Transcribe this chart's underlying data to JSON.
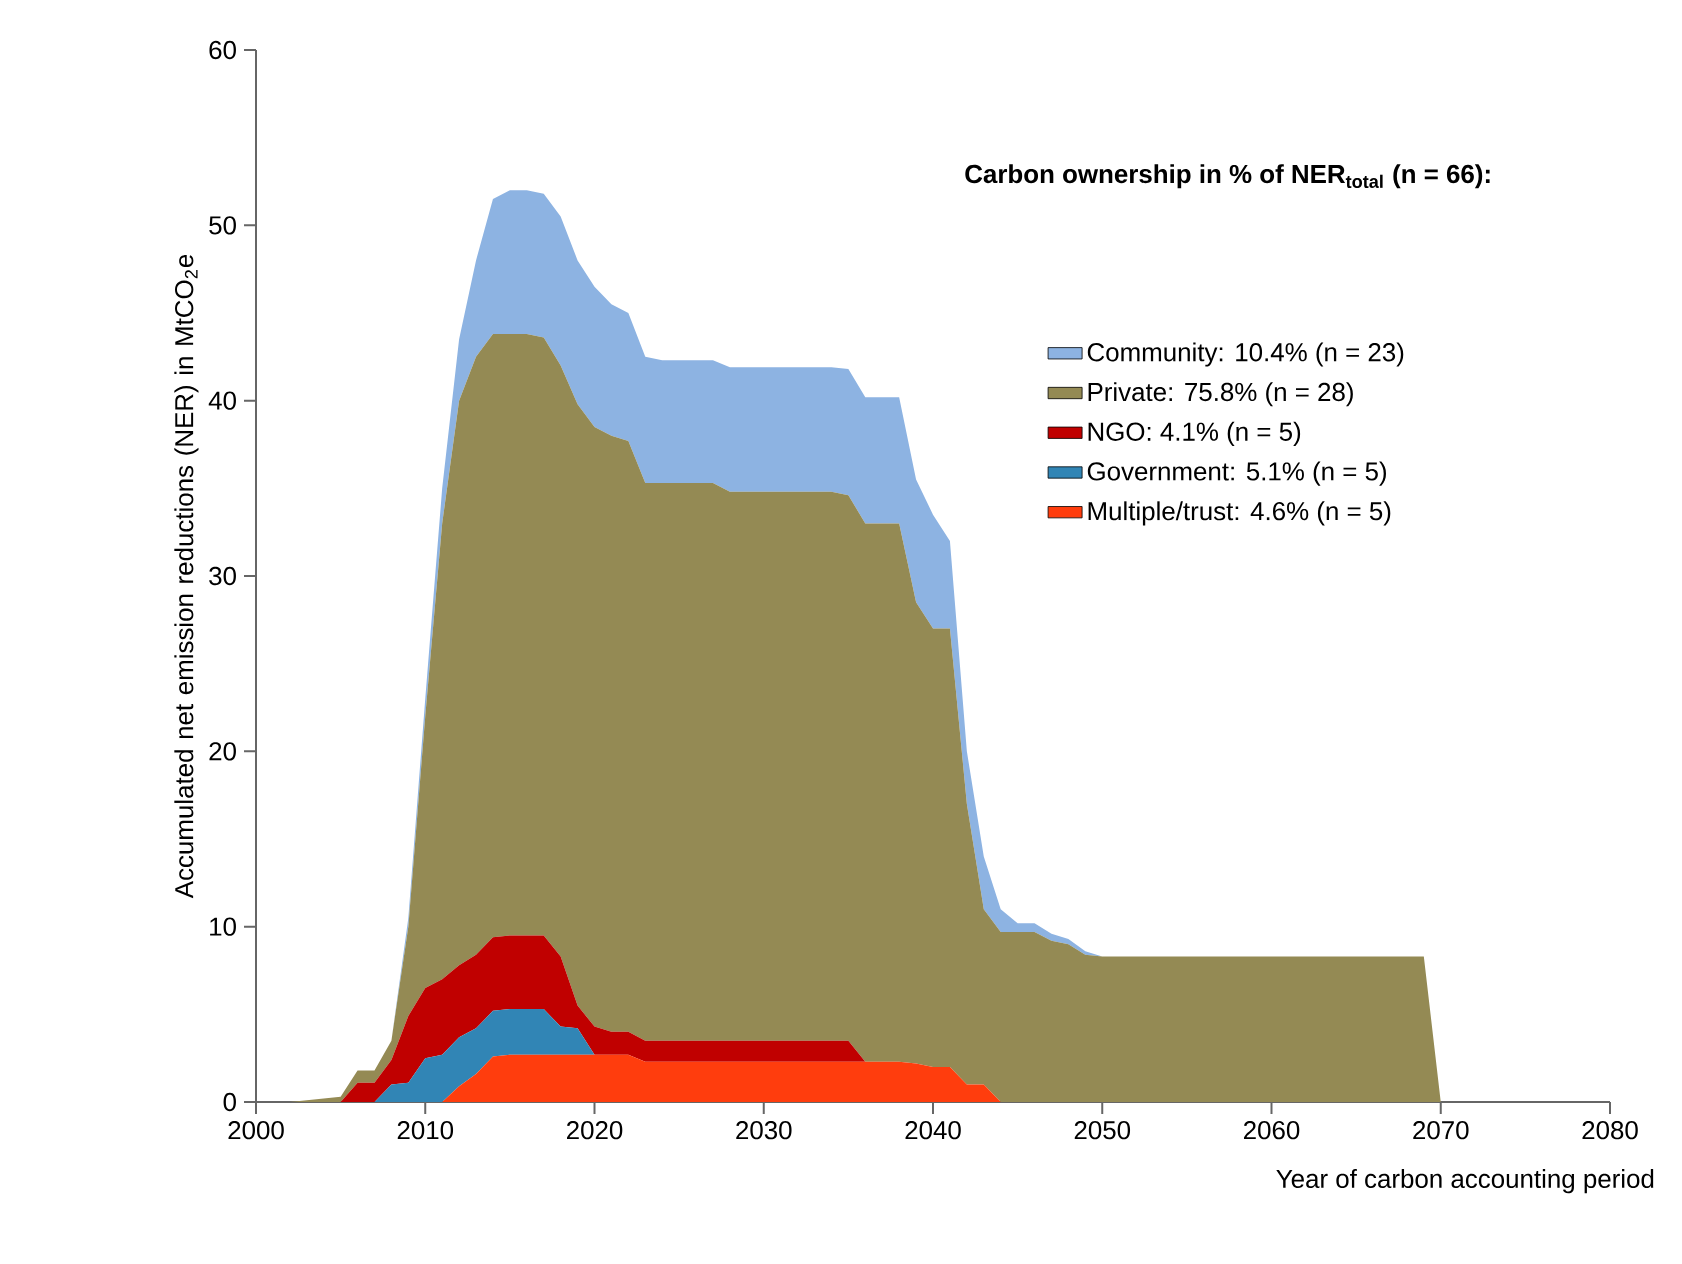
{
  "chart_data": {
    "type": "area",
    "stacked": true,
    "xlabel": "Year of carbon accounting period",
    "ylabel": "Accumulated net emission reductions (NER) in MtCO$_{2}$e",
    "legend_title": "**Carbon ownership in % of NER$_{total}$ (n = 66):**",
    "legend": "top right",
    "grid": false,
    "xlim": [
      2000,
      2080
    ],
    "xticks": [
      2000,
      2010,
      2020,
      2030,
      2040,
      2050,
      2060,
      2070,
      2080
    ],
    "ylim": [
      0,
      60
    ],
    "yticks": [
      0,
      10,
      20,
      30,
      40,
      50,
      60
    ],
    "x": [
      2002,
      2003,
      2004,
      2005,
      2006,
      2007,
      2008,
      2009,
      2010,
      2011,
      2012,
      2013,
      2014,
      2015,
      2016,
      2017,
      2018,
      2019,
      2020,
      2021,
      2022,
      2023,
      2024,
      2025,
      2026,
      2027,
      2028,
      2029,
      2030,
      2031,
      2032,
      2033,
      2034,
      2035,
      2036,
      2037,
      2038,
      2039,
      2040,
      2041,
      2042,
      2043,
      2044,
      2045,
      2046,
      2047,
      2048,
      2049,
      2050,
      2051,
      2052,
      2053,
      2054,
      2055,
      2056,
      2057,
      2058,
      2059,
      2060,
      2061,
      2062,
      2063,
      2064,
      2065,
      2066,
      2067,
      2068,
      2069,
      2070
    ],
    "series": [
      {
        "name": "Multiple/trust: 4.6% (n = 5)",
        "color": "#ff3d0d",
        "values": [
          0,
          0,
          0,
          0,
          0,
          0,
          0,
          0,
          0,
          0,
          0.9,
          1.6,
          2.6,
          2.7,
          2.7,
          2.7,
          2.7,
          2.7,
          2.7,
          2.7,
          2.7,
          2.3,
          2.3,
          2.3,
          2.3,
          2.3,
          2.3,
          2.3,
          2.3,
          2.3,
          2.3,
          2.3,
          2.3,
          2.3,
          2.3,
          2.3,
          2.3,
          2.2,
          2.0,
          2.0,
          1.0,
          1.0,
          0,
          0,
          0,
          0,
          0,
          0,
          0,
          0,
          0,
          0,
          0,
          0,
          0,
          0,
          0,
          0,
          0,
          0,
          0,
          0,
          0,
          0,
          0,
          0,
          0,
          0,
          0
        ]
      },
      {
        "name": "Government: 5.1% (n = 5)",
        "color": "#3185b5",
        "values": [
          0,
          0,
          0,
          0,
          0,
          0,
          1.0,
          1.1,
          2.5,
          2.7,
          2.8,
          2.6,
          2.6,
          2.6,
          2.6,
          2.6,
          1.6,
          1.5,
          0,
          0,
          0,
          0,
          0,
          0,
          0,
          0,
          0,
          0,
          0,
          0,
          0,
          0,
          0,
          0,
          0,
          0,
          0,
          0,
          0,
          0,
          0,
          0,
          0,
          0,
          0,
          0,
          0,
          0,
          0,
          0,
          0,
          0,
          0,
          0,
          0,
          0,
          0,
          0,
          0,
          0,
          0,
          0,
          0,
          0,
          0,
          0,
          0,
          0,
          0
        ]
      },
      {
        "name": "NGO: 4.1% (n = 5)",
        "color": "#c00000",
        "values": [
          0,
          0,
          0,
          0,
          1.1,
          1.1,
          1.4,
          3.8,
          4.0,
          4.3,
          4.1,
          4.2,
          4.2,
          4.2,
          4.2,
          4.2,
          4.0,
          1.3,
          1.6,
          1.3,
          1.3,
          1.2,
          1.2,
          1.2,
          1.2,
          1.2,
          1.2,
          1.2,
          1.2,
          1.2,
          1.2,
          1.2,
          1.2,
          1.2,
          0,
          0,
          0,
          0,
          0,
          0,
          0,
          0,
          0,
          0,
          0,
          0,
          0,
          0,
          0,
          0,
          0,
          0,
          0,
          0,
          0,
          0,
          0,
          0,
          0,
          0,
          0,
          0,
          0,
          0,
          0,
          0,
          0,
          0,
          0
        ]
      },
      {
        "name": "Private: 75.8% (n = 28)",
        "color": "#948a54",
        "values": [
          0,
          0.1,
          0.2,
          0.3,
          0.7,
          0.7,
          1.1,
          5.1,
          15.5,
          26.0,
          32.2,
          34.1,
          34.4,
          34.3,
          34.3,
          34.1,
          33.7,
          34.3,
          34.2,
          34.0,
          33.7,
          31.8,
          31.8,
          31.8,
          31.8,
          31.8,
          31.3,
          31.3,
          31.3,
          31.3,
          31.3,
          31.3,
          31.3,
          31.1,
          30.7,
          30.7,
          30.7,
          26.3,
          25.0,
          25.0,
          16.0,
          10.0,
          9.7,
          9.7,
          9.7,
          9.2,
          9.0,
          8.4,
          8.3,
          8.3,
          8.3,
          8.3,
          8.3,
          8.3,
          8.3,
          8.3,
          8.3,
          8.3,
          8.3,
          8.3,
          8.3,
          8.3,
          8.3,
          8.3,
          8.3,
          8.3,
          8.3,
          8.3,
          0
        ]
      },
      {
        "name": "Community: 10.4% (n = 23)",
        "color": "#8db3e2",
        "values": [
          0,
          0,
          0,
          0,
          0,
          0,
          0,
          0.5,
          1.0,
          2.0,
          3.5,
          5.5,
          7.7,
          8.2,
          8.2,
          8.2,
          8.5,
          8.2,
          8.0,
          7.5,
          7.3,
          7.2,
          7.0,
          7.0,
          7.0,
          7.0,
          7.1,
          7.1,
          7.1,
          7.1,
          7.1,
          7.1,
          7.1,
          7.2,
          7.2,
          7.2,
          7.2,
          7.0,
          6.5,
          5.0,
          3.0,
          3.0,
          1.3,
          0.5,
          0.5,
          0.4,
          0.3,
          0.2,
          0,
          0,
          0,
          0,
          0,
          0,
          0,
          0,
          0,
          0,
          0,
          0,
          0,
          0,
          0,
          0,
          0,
          0,
          0,
          0,
          0
        ]
      }
    ]
  }
}
